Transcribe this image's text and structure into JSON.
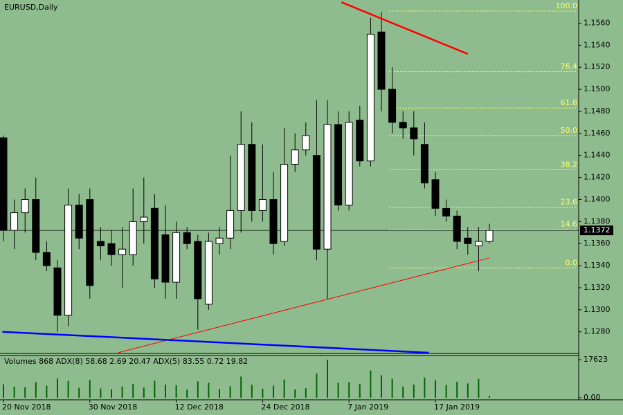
{
  "chart_data": {
    "type": "candlestick",
    "title": "EURUSD,Daily",
    "categories": [
      "20 Nov 2018",
      null,
      null,
      null,
      null,
      null,
      null,
      null,
      "30 Nov 2018",
      null,
      null,
      null,
      null,
      null,
      null,
      null,
      "12 Dec 2018",
      null,
      null,
      null,
      null,
      null,
      null,
      null,
      "24 Dec 2018",
      null,
      null,
      null,
      null,
      null,
      null,
      null,
      "7 Jan 2019",
      null,
      null,
      null,
      null,
      null,
      null,
      null,
      "17 Jan 2019",
      null,
      null,
      null,
      null,
      null
    ],
    "open": [
      1.1456,
      1.1372,
      1.1388,
      1.14,
      1.1352,
      1.1338,
      1.1295,
      1.1395,
      1.14,
      1.1362,
      1.136,
      1.135,
      1.135,
      1.138,
      1.1392,
      1.1368,
      1.1325,
      1.137,
      1.1362,
      1.1305,
      1.136,
      1.1365,
      1.139,
      1.145,
      1.139,
      1.14,
      1.1362,
      1.1432,
      1.1445,
      1.144,
      1.1355,
      1.1468,
      1.1395,
      1.1472,
      1.1435,
      1.1552,
      1.15,
      1.147,
      1.1465,
      1.145,
      1.1418,
      1.1392,
      1.1385,
      1.1365,
      1.1358,
      1.1362
    ],
    "high": [
      1.1458,
      1.14,
      1.141,
      1.142,
      1.1362,
      1.1345,
      1.141,
      1.1405,
      1.141,
      1.1375,
      1.1372,
      1.1375,
      1.141,
      1.142,
      1.1405,
      1.1395,
      1.138,
      1.1375,
      1.1368,
      1.137,
      1.1375,
      1.144,
      1.148,
      1.147,
      1.145,
      1.1425,
      1.1465,
      1.146,
      1.147,
      1.149,
      1.149,
      1.148,
      1.148,
      1.1485,
      1.1565,
      1.157,
      1.152,
      1.148,
      1.148,
      1.147,
      1.1425,
      1.14,
      1.139,
      1.1375,
      1.1375,
      1.1378
    ],
    "low": [
      1.1362,
      1.1355,
      1.137,
      1.1345,
      1.1335,
      1.128,
      1.1285,
      1.1355,
      1.131,
      1.1345,
      1.134,
      1.132,
      1.134,
      1.136,
      1.132,
      1.131,
      1.131,
      1.1355,
      1.1282,
      1.13,
      1.135,
      1.1355,
      1.137,
      1.138,
      1.138,
      1.135,
      1.1358,
      1.1425,
      1.144,
      1.1345,
      1.131,
      1.139,
      1.139,
      1.143,
      1.143,
      1.148,
      1.146,
      1.1455,
      1.144,
      1.141,
      1.1385,
      1.138,
      1.1355,
      1.135,
      1.1335,
      1.136
    ],
    "close": [
      1.1372,
      1.1388,
      1.14,
      1.1352,
      1.134,
      1.1295,
      1.1395,
      1.1365,
      1.1322,
      1.1358,
      1.135,
      1.1355,
      1.138,
      1.1384,
      1.1328,
      1.1325,
      1.137,
      1.136,
      1.131,
      1.1362,
      1.1365,
      1.139,
      1.145,
      1.139,
      1.14,
      1.136,
      1.1432,
      1.1445,
      1.1458,
      1.1355,
      1.1468,
      1.1395,
      1.147,
      1.1435,
      1.155,
      1.15,
      1.147,
      1.1465,
      1.1455,
      1.1415,
      1.1392,
      1.1385,
      1.1362,
      1.136,
      1.1362,
      1.1372
    ],
    "ylim": [
      1.1261,
      1.1581
    ],
    "yticks": [
      {
        "value": 1.128,
        "label": "1.1280"
      },
      {
        "value": 1.13,
        "label": "1.1300"
      },
      {
        "value": 1.132,
        "label": "1.1320"
      },
      {
        "value": 1.134,
        "label": "1.1340"
      },
      {
        "value": 1.136,
        "label": "1.1360"
      },
      {
        "value": 1.138,
        "label": "1.1380"
      },
      {
        "value": 1.14,
        "label": "1.1400"
      },
      {
        "value": 1.142,
        "label": "1.1420"
      },
      {
        "value": 1.144,
        "label": "1.1440"
      },
      {
        "value": 1.146,
        "label": "1.1460"
      },
      {
        "value": 1.148,
        "label": "1.1480"
      },
      {
        "value": 1.15,
        "label": "1.1500"
      },
      {
        "value": 1.152,
        "label": "1.1520"
      },
      {
        "value": 1.154,
        "label": "1.1540"
      },
      {
        "value": 1.156,
        "label": "1.1560"
      }
    ],
    "current_price": {
      "value": 1.1372,
      "label": "1.1372"
    },
    "fibonacci": [
      {
        "label": "100.0",
        "price": 1.1571
      },
      {
        "label": "76.4",
        "price": 1.1516
      },
      {
        "label": "61.8",
        "price": 1.1483
      },
      {
        "label": "50.0",
        "price": 1.1458
      },
      {
        "label": "38.2",
        "price": 1.1427
      },
      {
        "label": "23.6",
        "price": 1.1393
      },
      {
        "label": "14.6",
        "price": 1.1373
      },
      {
        "label": "0.0",
        "price": 1.1338
      }
    ],
    "fib_color": "#ffff66",
    "trendlines": [
      {
        "color": "#ff0000",
        "width": 2.5,
        "x": [
          31.3,
          43
        ],
        "y": [
          1.1579,
          1.1532
        ]
      },
      {
        "color": "#ff0000",
        "width": 1,
        "x": [
          10.6,
          45
        ],
        "y": [
          1.1261,
          1.1347
        ]
      },
      {
        "color": "#0000ff",
        "width": 2.5,
        "x": [
          -0.1,
          39.4
        ],
        "y": [
          1.128,
          1.1261
        ]
      }
    ],
    "volume_label": "Volumes 868 ADX(8) 58.68 2.69 20.47 ADX(5) 83.55 0.72 19.82",
    "volumes": [
      6200,
      5100,
      4800,
      7300,
      5600,
      8900,
      7800,
      4600,
      8200,
      4300,
      3900,
      5200,
      6400,
      4700,
      7900,
      6100,
      5800,
      3700,
      7600,
      6900,
      4100,
      5300,
      9800,
      6000,
      4200,
      5600,
      8400,
      3800,
      4400,
      11200,
      17623,
      6900,
      7200,
      6300,
      12600,
      10400,
      8800,
      5200,
      6100,
      9300,
      8100,
      5900,
      7400,
      6600,
      8700,
      868
    ],
    "vol_ylim": [
      0,
      17623
    ],
    "vol_yticks": [
      {
        "value": 0,
        "label": "0.00"
      },
      17623
    ]
  }
}
